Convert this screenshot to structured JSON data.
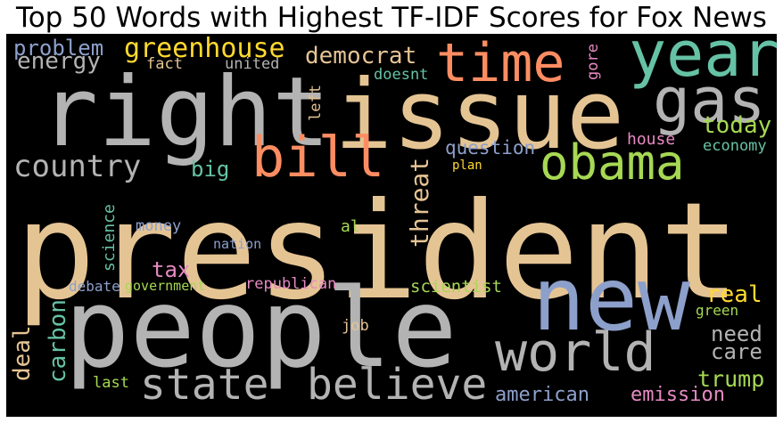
{
  "title": "Top 50 Words with Highest TF-IDF Scores for Fox News",
  "palette": {
    "tan": "#e5c494",
    "gray": "#b3b3b3",
    "blue": "#8da0cb",
    "green": "#a6d854",
    "teal": "#66c2a5",
    "orange": "#fc8d62",
    "pink": "#e78ac3",
    "yellow": "#ffd92f",
    "background": "#000000"
  },
  "words": [
    {
      "text": "president",
      "color": "#e5c494"
    },
    {
      "text": "people",
      "color": "#b3b3b3"
    },
    {
      "text": "right",
      "color": "#b3b3b3"
    },
    {
      "text": "issue",
      "color": "#e5c494"
    },
    {
      "text": "new",
      "color": "#8da0cb"
    },
    {
      "text": "year",
      "color": "#66c2a5"
    },
    {
      "text": "time",
      "color": "#fc8d62"
    },
    {
      "text": "world",
      "color": "#b3b3b3"
    },
    {
      "text": "gas",
      "color": "#b3b3b3"
    },
    {
      "text": "obama",
      "color": "#a6d854"
    },
    {
      "text": "bill",
      "color": "#fc8d62"
    },
    {
      "text": "state",
      "color": "#b3b3b3"
    },
    {
      "text": "believe",
      "color": "#b3b3b3"
    },
    {
      "text": "country",
      "color": "#b3b3b3"
    },
    {
      "text": "greenhouse",
      "color": "#ffd92f"
    },
    {
      "text": "democrat",
      "color": "#e5c494"
    },
    {
      "text": "energy",
      "color": "#b3b3b3"
    },
    {
      "text": "problem",
      "color": "#8da0cb"
    },
    {
      "text": "threat",
      "color": "#e5c494"
    },
    {
      "text": "carbon",
      "color": "#66c2a5"
    },
    {
      "text": "deal",
      "color": "#e5c494"
    },
    {
      "text": "today",
      "color": "#a6d854"
    },
    {
      "text": "american",
      "color": "#8da0cb"
    },
    {
      "text": "emission",
      "color": "#e78ac3"
    },
    {
      "text": "trump",
      "color": "#a6d854"
    },
    {
      "text": "care",
      "color": "#b3b3b3"
    },
    {
      "text": "need",
      "color": "#b3b3b3"
    },
    {
      "text": "real",
      "color": "#ffd92f"
    },
    {
      "text": "tax",
      "color": "#e78ac3"
    },
    {
      "text": "big",
      "color": "#66c2a5"
    },
    {
      "text": "question",
      "color": "#8da0cb"
    },
    {
      "text": "scientist",
      "color": "#a6d854"
    },
    {
      "text": "republican",
      "color": "#e78ac3"
    },
    {
      "text": "science",
      "color": "#66c2a5"
    },
    {
      "text": "house",
      "color": "#e78ac3"
    },
    {
      "text": "economy",
      "color": "#66c2a5"
    },
    {
      "text": "fact",
      "color": "#e5c494"
    },
    {
      "text": "united",
      "color": "#b3b3b3"
    },
    {
      "text": "doesnt",
      "color": "#66c2a5"
    },
    {
      "text": "gore",
      "color": "#e78ac3"
    },
    {
      "text": "left",
      "color": "#e5c494"
    },
    {
      "text": "al",
      "color": "#a6d854"
    },
    {
      "text": "money",
      "color": "#8da0cb"
    },
    {
      "text": "nation",
      "color": "#8da0cb"
    },
    {
      "text": "debate",
      "color": "#8da0cb"
    },
    {
      "text": "government",
      "color": "#a6d854"
    },
    {
      "text": "job",
      "color": "#e5c494"
    },
    {
      "text": "last",
      "color": "#a6d854"
    },
    {
      "text": "green",
      "color": "#a6d854"
    },
    {
      "text": "plan",
      "color": "#ffd92f"
    }
  ]
}
